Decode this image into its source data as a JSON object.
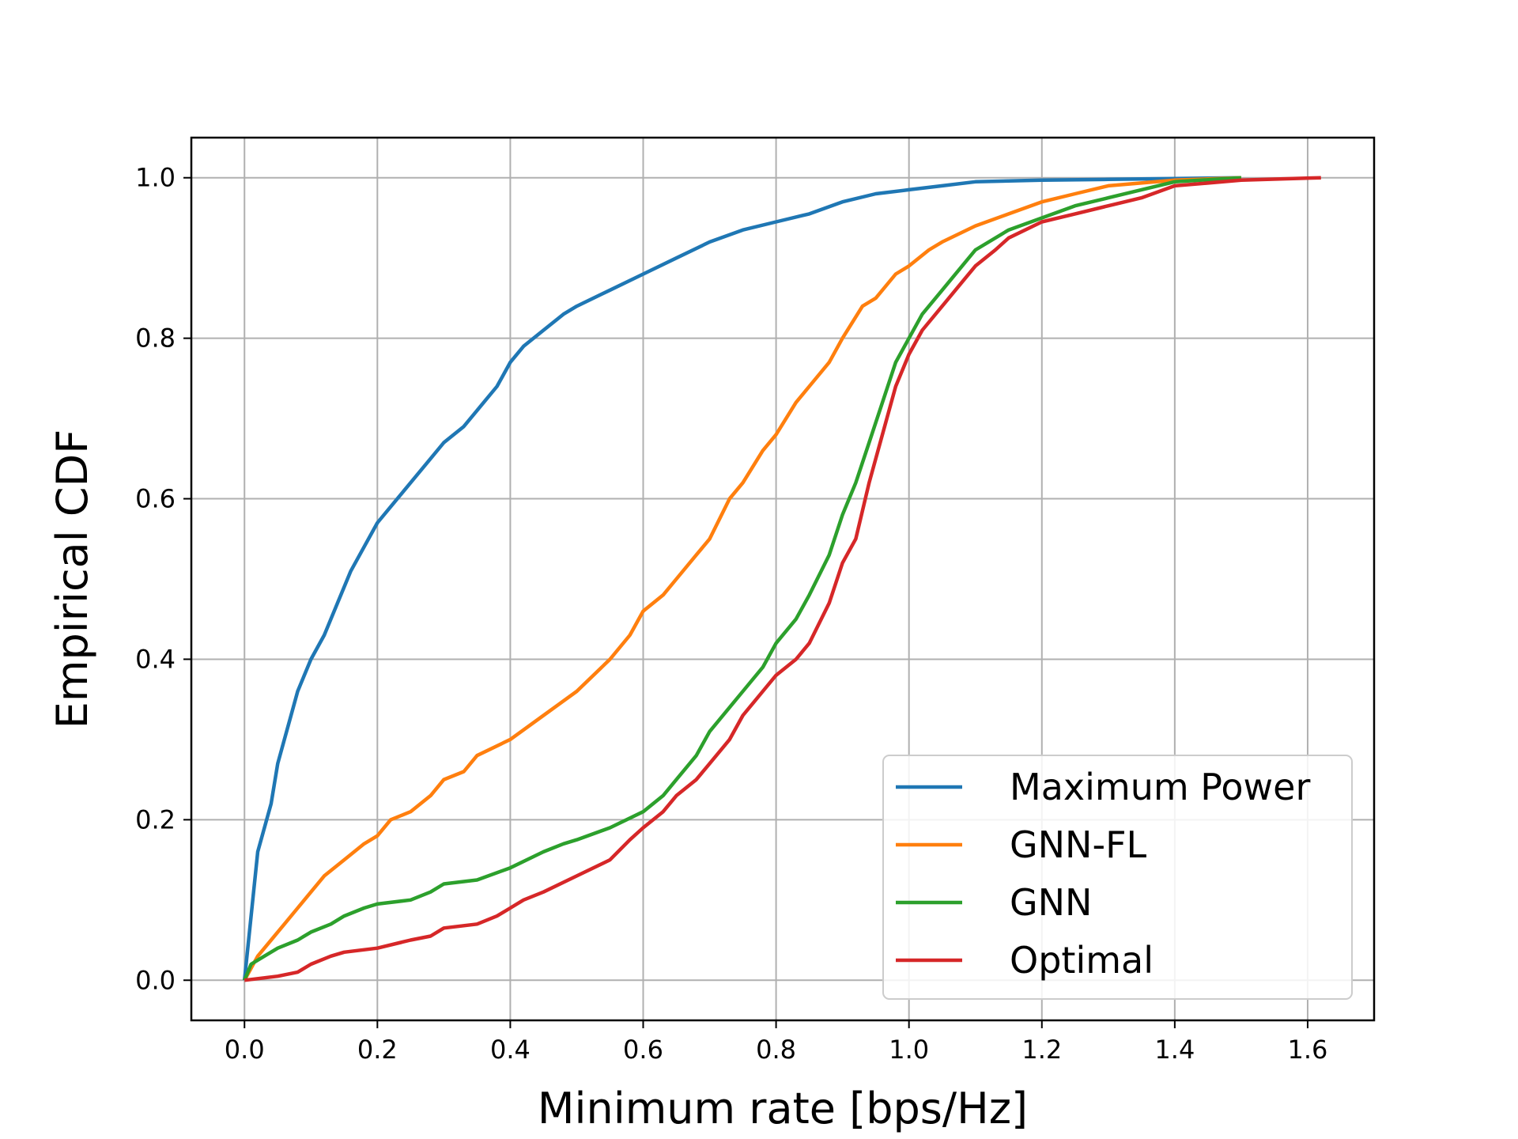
{
  "chart_data": {
    "type": "line",
    "title": "",
    "xlabel": "Minimum rate [bps/Hz]",
    "ylabel": "Empirical CDF",
    "xlim": [
      -0.08,
      1.7
    ],
    "ylim": [
      -0.05,
      1.05
    ],
    "xticks": [
      0.0,
      0.2,
      0.4,
      0.6,
      0.8,
      1.0,
      1.2,
      1.4,
      1.6
    ],
    "xtick_labels": [
      "0.0",
      "0.2",
      "0.4",
      "0.6",
      "0.8",
      "1.0",
      "1.2",
      "1.4",
      "1.6"
    ],
    "yticks": [
      0.0,
      0.2,
      0.4,
      0.6,
      0.8,
      1.0
    ],
    "ytick_labels": [
      "0.0",
      "0.2",
      "0.4",
      "0.6",
      "0.8",
      "1.0"
    ],
    "grid": true,
    "legend_position": "lower-right",
    "series": [
      {
        "name": "Maximum Power",
        "color": "#1f77b4",
        "points": [
          [
            0.0,
            0.0
          ],
          [
            0.01,
            0.08
          ],
          [
            0.02,
            0.16
          ],
          [
            0.04,
            0.22
          ],
          [
            0.05,
            0.27
          ],
          [
            0.06,
            0.3
          ],
          [
            0.07,
            0.33
          ],
          [
            0.08,
            0.36
          ],
          [
            0.1,
            0.4
          ],
          [
            0.12,
            0.43
          ],
          [
            0.14,
            0.47
          ],
          [
            0.16,
            0.51
          ],
          [
            0.18,
            0.54
          ],
          [
            0.2,
            0.57
          ],
          [
            0.22,
            0.59
          ],
          [
            0.25,
            0.62
          ],
          [
            0.28,
            0.65
          ],
          [
            0.3,
            0.67
          ],
          [
            0.33,
            0.69
          ],
          [
            0.35,
            0.71
          ],
          [
            0.38,
            0.74
          ],
          [
            0.4,
            0.77
          ],
          [
            0.42,
            0.79
          ],
          [
            0.45,
            0.81
          ],
          [
            0.48,
            0.83
          ],
          [
            0.5,
            0.84
          ],
          [
            0.55,
            0.86
          ],
          [
            0.6,
            0.88
          ],
          [
            0.65,
            0.9
          ],
          [
            0.7,
            0.92
          ],
          [
            0.75,
            0.935
          ],
          [
            0.8,
            0.945
          ],
          [
            0.85,
            0.955
          ],
          [
            0.9,
            0.97
          ],
          [
            0.95,
            0.98
          ],
          [
            1.0,
            0.985
          ],
          [
            1.05,
            0.99
          ],
          [
            1.1,
            0.995
          ],
          [
            1.2,
            0.997
          ],
          [
            1.3,
            0.998
          ],
          [
            1.4,
            0.999
          ],
          [
            1.5,
            1.0
          ]
        ]
      },
      {
        "name": "GNN-FL",
        "color": "#ff7f0e",
        "points": [
          [
            0.0,
            0.0
          ],
          [
            0.02,
            0.03
          ],
          [
            0.04,
            0.05
          ],
          [
            0.06,
            0.07
          ],
          [
            0.08,
            0.09
          ],
          [
            0.1,
            0.11
          ],
          [
            0.12,
            0.13
          ],
          [
            0.15,
            0.15
          ],
          [
            0.18,
            0.17
          ],
          [
            0.2,
            0.18
          ],
          [
            0.22,
            0.2
          ],
          [
            0.25,
            0.21
          ],
          [
            0.28,
            0.23
          ],
          [
            0.3,
            0.25
          ],
          [
            0.33,
            0.26
          ],
          [
            0.35,
            0.28
          ],
          [
            0.4,
            0.3
          ],
          [
            0.45,
            0.33
          ],
          [
            0.5,
            0.36
          ],
          [
            0.55,
            0.4
          ],
          [
            0.58,
            0.43
          ],
          [
            0.6,
            0.46
          ],
          [
            0.63,
            0.48
          ],
          [
            0.65,
            0.5
          ],
          [
            0.68,
            0.53
          ],
          [
            0.7,
            0.55
          ],
          [
            0.73,
            0.6
          ],
          [
            0.75,
            0.62
          ],
          [
            0.78,
            0.66
          ],
          [
            0.8,
            0.68
          ],
          [
            0.83,
            0.72
          ],
          [
            0.85,
            0.74
          ],
          [
            0.88,
            0.77
          ],
          [
            0.9,
            0.8
          ],
          [
            0.93,
            0.84
          ],
          [
            0.95,
            0.85
          ],
          [
            0.98,
            0.88
          ],
          [
            1.0,
            0.89
          ],
          [
            1.03,
            0.91
          ],
          [
            1.05,
            0.92
          ],
          [
            1.1,
            0.94
          ],
          [
            1.15,
            0.955
          ],
          [
            1.2,
            0.97
          ],
          [
            1.25,
            0.98
          ],
          [
            1.3,
            0.99
          ],
          [
            1.4,
            0.997
          ],
          [
            1.5,
            1.0
          ]
        ]
      },
      {
        "name": "GNN",
        "color": "#2ca02c",
        "points": [
          [
            0.0,
            0.0
          ],
          [
            0.01,
            0.02
          ],
          [
            0.03,
            0.03
          ],
          [
            0.05,
            0.04
          ],
          [
            0.08,
            0.05
          ],
          [
            0.1,
            0.06
          ],
          [
            0.13,
            0.07
          ],
          [
            0.15,
            0.08
          ],
          [
            0.18,
            0.09
          ],
          [
            0.2,
            0.095
          ],
          [
            0.25,
            0.1
          ],
          [
            0.28,
            0.11
          ],
          [
            0.3,
            0.12
          ],
          [
            0.35,
            0.125
          ],
          [
            0.4,
            0.14
          ],
          [
            0.45,
            0.16
          ],
          [
            0.48,
            0.17
          ],
          [
            0.5,
            0.175
          ],
          [
            0.55,
            0.19
          ],
          [
            0.6,
            0.21
          ],
          [
            0.63,
            0.23
          ],
          [
            0.65,
            0.25
          ],
          [
            0.68,
            0.28
          ],
          [
            0.7,
            0.31
          ],
          [
            0.73,
            0.34
          ],
          [
            0.75,
            0.36
          ],
          [
            0.78,
            0.39
          ],
          [
            0.8,
            0.42
          ],
          [
            0.83,
            0.45
          ],
          [
            0.85,
            0.48
          ],
          [
            0.88,
            0.53
          ],
          [
            0.9,
            0.58
          ],
          [
            0.92,
            0.62
          ],
          [
            0.94,
            0.67
          ],
          [
            0.96,
            0.72
          ],
          [
            0.98,
            0.77
          ],
          [
            1.0,
            0.8
          ],
          [
            1.02,
            0.83
          ],
          [
            1.05,
            0.86
          ],
          [
            1.08,
            0.89
          ],
          [
            1.1,
            0.91
          ],
          [
            1.15,
            0.935
          ],
          [
            1.2,
            0.95
          ],
          [
            1.25,
            0.965
          ],
          [
            1.3,
            0.975
          ],
          [
            1.35,
            0.985
          ],
          [
            1.4,
            0.995
          ],
          [
            1.5,
            1.0
          ]
        ]
      },
      {
        "name": "Optimal",
        "color": "#d62728",
        "points": [
          [
            0.0,
            0.0
          ],
          [
            0.05,
            0.005
          ],
          [
            0.08,
            0.01
          ],
          [
            0.1,
            0.02
          ],
          [
            0.13,
            0.03
          ],
          [
            0.15,
            0.035
          ],
          [
            0.2,
            0.04
          ],
          [
            0.25,
            0.05
          ],
          [
            0.28,
            0.055
          ],
          [
            0.3,
            0.065
          ],
          [
            0.35,
            0.07
          ],
          [
            0.38,
            0.08
          ],
          [
            0.4,
            0.09
          ],
          [
            0.42,
            0.1
          ],
          [
            0.45,
            0.11
          ],
          [
            0.5,
            0.13
          ],
          [
            0.55,
            0.15
          ],
          [
            0.58,
            0.175
          ],
          [
            0.6,
            0.19
          ],
          [
            0.63,
            0.21
          ],
          [
            0.65,
            0.23
          ],
          [
            0.68,
            0.25
          ],
          [
            0.7,
            0.27
          ],
          [
            0.73,
            0.3
          ],
          [
            0.75,
            0.33
          ],
          [
            0.78,
            0.36
          ],
          [
            0.8,
            0.38
          ],
          [
            0.83,
            0.4
          ],
          [
            0.85,
            0.42
          ],
          [
            0.88,
            0.47
          ],
          [
            0.9,
            0.52
          ],
          [
            0.92,
            0.55
          ],
          [
            0.94,
            0.62
          ],
          [
            0.96,
            0.68
          ],
          [
            0.98,
            0.74
          ],
          [
            1.0,
            0.78
          ],
          [
            1.02,
            0.81
          ],
          [
            1.05,
            0.84
          ],
          [
            1.08,
            0.87
          ],
          [
            1.1,
            0.89
          ],
          [
            1.13,
            0.91
          ],
          [
            1.15,
            0.925
          ],
          [
            1.2,
            0.945
          ],
          [
            1.25,
            0.955
          ],
          [
            1.3,
            0.965
          ],
          [
            1.35,
            0.975
          ],
          [
            1.4,
            0.99
          ],
          [
            1.5,
            0.997
          ],
          [
            1.62,
            1.0
          ]
        ]
      }
    ]
  }
}
